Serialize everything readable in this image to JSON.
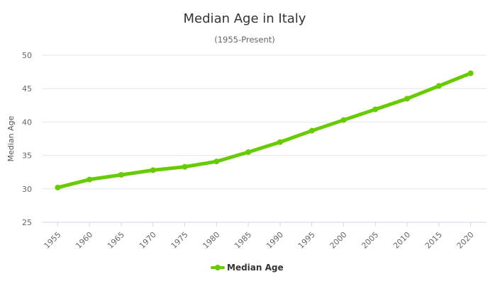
{
  "chart_data": {
    "type": "line",
    "title": "Median Age in Italy",
    "subtitle": "(1955-Present)",
    "ylabel": "Median Age",
    "xlabel": "",
    "ylim": [
      25,
      50
    ],
    "yticks": [
      25,
      30,
      35,
      40,
      45,
      50
    ],
    "categories": [
      "1955",
      "1960",
      "1965",
      "1970",
      "1975",
      "1980",
      "1985",
      "1990",
      "1995",
      "2000",
      "2005",
      "2010",
      "2015",
      "2020"
    ],
    "series": [
      {
        "name": "Median Age",
        "color": "#66cc00",
        "values": [
          30.2,
          31.4,
          32.1,
          32.8,
          33.3,
          34.1,
          35.5,
          37.0,
          38.7,
          40.3,
          41.9,
          43.5,
          45.4,
          47.3
        ]
      }
    ],
    "grid": true,
    "legend": "bottom-center"
  }
}
